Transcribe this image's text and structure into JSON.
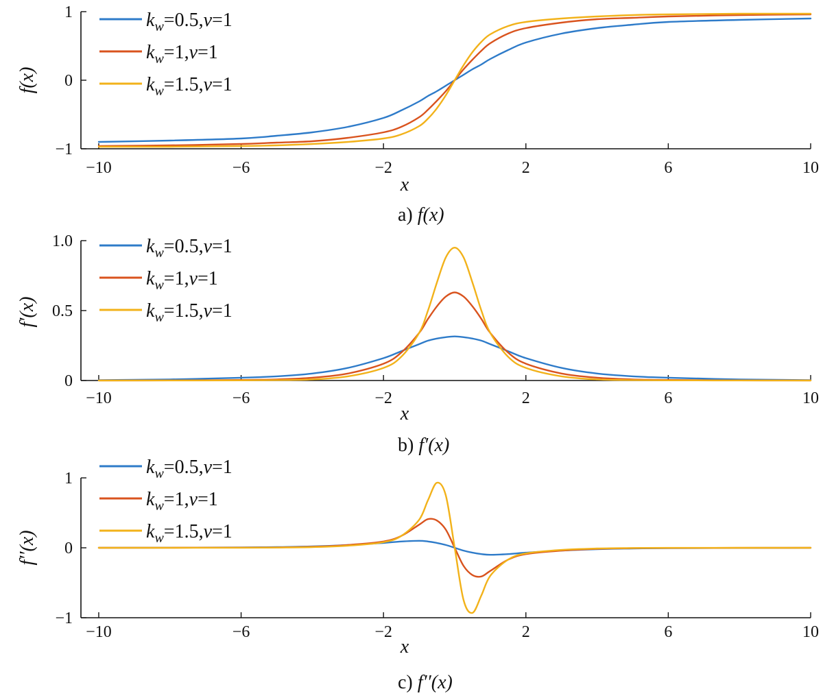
{
  "colors": {
    "blue": "#2e7bc9",
    "red": "#d9531e",
    "yellow": "#f2b21a"
  },
  "chart_data": [
    {
      "type": "line",
      "panel_label": "a)",
      "caption_func": "f(x)",
      "xlabel": "x",
      "ylabel": "f(x)",
      "xlim": [
        -10.5,
        10
      ],
      "ylim": [
        -1,
        1
      ],
      "xticks": [
        -10,
        -6,
        -2,
        2,
        6,
        10
      ],
      "yticks": [
        -1,
        0,
        1
      ],
      "ytick_labels": [
        "−1",
        "0",
        "1"
      ],
      "xtick_labels": [
        "−10",
        "−6",
        "−2",
        "2",
        "6",
        "10"
      ],
      "legend_position": "top-left",
      "x": [
        -10,
        -8,
        -6,
        -5,
        -4,
        -3,
        -2,
        -1.5,
        -1,
        -0.75,
        -0.5,
        -0.25,
        0,
        0.25,
        0.5,
        0.75,
        1,
        1.5,
        2,
        3,
        4,
        5,
        6,
        8,
        10
      ],
      "series": [
        {
          "name": "k_w=0.5, v=1",
          "color_key": "blue",
          "values": [
            -0.9,
            -0.88,
            -0.85,
            -0.81,
            -0.76,
            -0.68,
            -0.55,
            -0.44,
            -0.31,
            -0.23,
            -0.16,
            -0.08,
            0,
            0.08,
            0.16,
            0.23,
            0.31,
            0.44,
            0.55,
            0.68,
            0.76,
            0.81,
            0.85,
            0.88,
            0.9
          ]
        },
        {
          "name": "k_w=1, v=1",
          "color_key": "red",
          "values": [
            -0.96,
            -0.95,
            -0.93,
            -0.91,
            -0.89,
            -0.84,
            -0.76,
            -0.68,
            -0.54,
            -0.43,
            -0.3,
            -0.16,
            0,
            0.16,
            0.3,
            0.43,
            0.54,
            0.68,
            0.76,
            0.84,
            0.89,
            0.91,
            0.93,
            0.95,
            0.96
          ]
        },
        {
          "name": "k_w=1.5, v=1",
          "color_key": "yellow",
          "values": [
            -0.97,
            -0.97,
            -0.96,
            -0.95,
            -0.93,
            -0.9,
            -0.85,
            -0.79,
            -0.67,
            -0.56,
            -0.41,
            -0.22,
            0,
            0.22,
            0.41,
            0.56,
            0.67,
            0.79,
            0.85,
            0.9,
            0.93,
            0.95,
            0.96,
            0.97,
            0.97
          ]
        }
      ]
    },
    {
      "type": "line",
      "panel_label": "b)",
      "caption_func": "f′(x)",
      "xlabel": "x",
      "ylabel": "f′(x)",
      "xlim": [
        -10.5,
        10
      ],
      "ylim": [
        0,
        1
      ],
      "xticks": [
        -10,
        -6,
        -2,
        2,
        6,
        10
      ],
      "yticks": [
        0,
        0.5,
        1
      ],
      "ytick_labels": [
        "0",
        "0.5",
        "1.0"
      ],
      "xtick_labels": [
        "−10",
        "−6",
        "−2",
        "2",
        "6",
        "10"
      ],
      "legend_position": "top-left",
      "x": [
        -10,
        -8,
        -6,
        -5,
        -4,
        -3,
        -2,
        -1.5,
        -1,
        -0.75,
        -0.5,
        -0.25,
        0,
        0.25,
        0.5,
        0.75,
        1,
        1.5,
        2,
        3,
        4,
        5,
        6,
        8,
        10
      ],
      "series": [
        {
          "name": "k_w=0.5, v=1",
          "color_key": "blue",
          "values": [
            0.003,
            0.008,
            0.02,
            0.03,
            0.05,
            0.09,
            0.16,
            0.21,
            0.26,
            0.285,
            0.3,
            0.31,
            0.315,
            0.31,
            0.3,
            0.285,
            0.26,
            0.21,
            0.16,
            0.09,
            0.05,
            0.03,
            0.02,
            0.008,
            0.003
          ]
        },
        {
          "name": "k_w=1, v=1",
          "color_key": "red",
          "values": [
            0.0005,
            0.001,
            0.004,
            0.008,
            0.02,
            0.05,
            0.12,
            0.2,
            0.34,
            0.44,
            0.53,
            0.6,
            0.63,
            0.6,
            0.53,
            0.44,
            0.34,
            0.2,
            0.12,
            0.05,
            0.02,
            0.008,
            0.004,
            0.001,
            0.0005
          ]
        },
        {
          "name": "k_w=1.5, v=1",
          "color_key": "yellow",
          "values": [
            0,
            0.0005,
            0.001,
            0.003,
            0.008,
            0.03,
            0.09,
            0.17,
            0.34,
            0.5,
            0.7,
            0.88,
            0.95,
            0.88,
            0.7,
            0.5,
            0.34,
            0.17,
            0.09,
            0.03,
            0.008,
            0.003,
            0.001,
            0.0005,
            0
          ]
        }
      ]
    },
    {
      "type": "line",
      "panel_label": "c)",
      "caption_func": "f′′(x)",
      "xlabel": "x",
      "ylabel": "f′′(x)",
      "xlim": [
        -10.5,
        10
      ],
      "ylim": [
        -1,
        1
      ],
      "xticks": [
        -10,
        -6,
        -2,
        2,
        6,
        10
      ],
      "yticks": [
        -1,
        0,
        1
      ],
      "ytick_labels": [
        "−1",
        "0",
        "1"
      ],
      "xtick_labels": [
        "−10",
        "−6",
        "−2",
        "2",
        "6",
        "10"
      ],
      "legend_position": "top-left",
      "x": [
        -10,
        -8,
        -6,
        -5,
        -4,
        -3,
        -2,
        -1.5,
        -1,
        -0.75,
        -0.5,
        -0.25,
        0,
        0.25,
        0.5,
        0.75,
        1,
        1.5,
        2,
        3,
        4,
        5,
        6,
        8,
        10
      ],
      "series": [
        {
          "name": "k_w=0.5, v=1",
          "color_key": "blue",
          "values": [
            0.001,
            0.002,
            0.006,
            0.01,
            0.02,
            0.04,
            0.07,
            0.09,
            0.1,
            0.09,
            0.07,
            0.04,
            0,
            -0.04,
            -0.07,
            -0.09,
            -0.1,
            -0.09,
            -0.07,
            -0.04,
            -0.02,
            -0.01,
            -0.006,
            -0.002,
            -0.001
          ]
        },
        {
          "name": "k_w=1, v=1",
          "color_key": "red",
          "values": [
            0,
            0.001,
            0.003,
            0.006,
            0.015,
            0.04,
            0.09,
            0.17,
            0.33,
            0.41,
            0.39,
            0.26,
            0,
            -0.26,
            -0.39,
            -0.41,
            -0.33,
            -0.17,
            -0.09,
            -0.04,
            -0.015,
            -0.006,
            -0.003,
            -0.001,
            0
          ]
        },
        {
          "name": "k_w=1.5, v=1",
          "color_key": "yellow",
          "values": [
            0,
            0,
            0.001,
            0.003,
            0.01,
            0.03,
            0.08,
            0.17,
            0.4,
            0.68,
            0.93,
            0.75,
            0,
            -0.75,
            -0.93,
            -0.68,
            -0.4,
            -0.17,
            -0.08,
            -0.03,
            -0.01,
            -0.003,
            -0.001,
            0,
            0
          ]
        }
      ]
    }
  ]
}
